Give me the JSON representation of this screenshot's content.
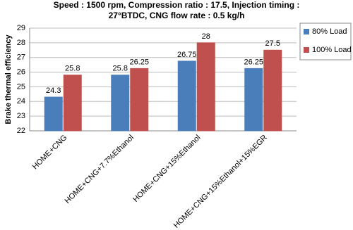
{
  "chart_data": {
    "type": "bar",
    "title": [
      "Speed : 1500 rpm, Compression ratio : 17.5, Injection timing :",
      "27°BTDC, CNG flow rate : 0.5 kg/h"
    ],
    "y_label": "Brake thermal efficiency",
    "categories": [
      "HOME+CNG",
      "HOME+CNG+7.7%Ethanol",
      "HOME+CNG+15%Ethanol",
      "HOME+CNG+15%Ethanol+15%EGR"
    ],
    "series": [
      {
        "name": "80% Load",
        "color": "#4a7ebb",
        "values": [
          24.3,
          25.8,
          26.75,
          26.25
        ]
      },
      {
        "name": "100% Load",
        "color": "#c0504d",
        "values": [
          25.8,
          26.25,
          28,
          27.5
        ]
      }
    ],
    "ylim": [
      22,
      29
    ],
    "yticks": [
      22,
      23,
      24,
      25,
      26,
      27,
      28,
      29
    ],
    "grid": true,
    "legend": "right"
  }
}
